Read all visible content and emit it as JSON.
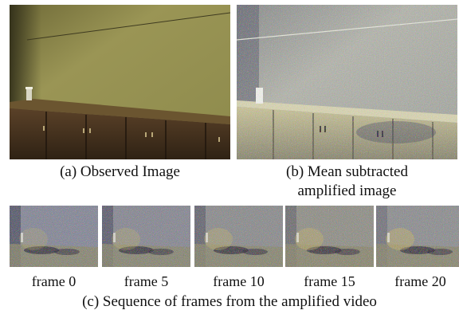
{
  "figure": {
    "panel_a": {
      "caption": "(a) Observed Image"
    },
    "panel_b": {
      "caption_line1": "(b) Mean subtracted",
      "caption_line2": "amplified image"
    },
    "frames": [
      {
        "label": "frame 0"
      },
      {
        "label": "frame 5"
      },
      {
        "label": "frame 10"
      },
      {
        "label": "frame 15"
      },
      {
        "label": "frame 20"
      }
    ],
    "panel_c": {
      "caption": "(c) Sequence of frames from the amplified video"
    }
  },
  "colors": {
    "wall_observed": "#8f8a4c",
    "cabinet_observed": "#4a3420",
    "wall_amplified": "#a9aba4",
    "noise_tint": "#9aa0b8"
  }
}
